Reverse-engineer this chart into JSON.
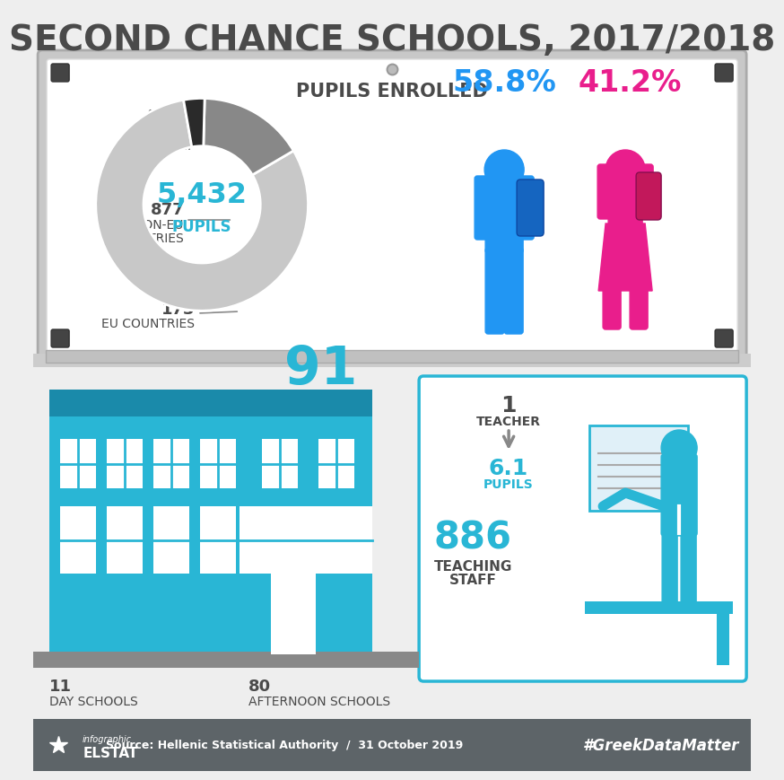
{
  "title": "SECOND CHANCE SCHOOLS, 2017/2018",
  "title_color": "#4a4a4a",
  "bg_color": "#eeeeee",
  "whiteboard_color": "#ffffff",
  "pupils_enrolled_label": "PUPILS ENROLLED",
  "total_pupils": "5,432",
  "total_pupils_label": "PUPILS",
  "donut_values": [
    4382,
    877,
    173
  ],
  "donut_colors": [
    "#c8c8c8",
    "#888888",
    "#2a2a2a"
  ],
  "male_pct": "58.8%",
  "female_pct": "41.2%",
  "male_color": "#2196f3",
  "female_color": "#e91e8c",
  "schools_number": "91",
  "schools_color": "#29b6d5",
  "day_schools": "11",
  "afternoon_schools": "80",
  "day_label": "DAY SCHOOLS",
  "afternoon_label": "AFTERNOON SCHOOLS",
  "teacher_ratio": "6.1",
  "pupils_label": "PUPILS",
  "teaching_staff": "886",
  "teaching_label": "TEACHING\nSTAFF",
  "center_text_color": "#29b6d5",
  "source_text": "Source: Hellenic Statistical Authority  /  31 October 2019",
  "hashtag": "#GreekDataMatter",
  "footer_bg": "#5d6468",
  "school_building_color": "#29b6d5",
  "school_building_dark": "#1a8aaa",
  "ground_color": "#888888"
}
